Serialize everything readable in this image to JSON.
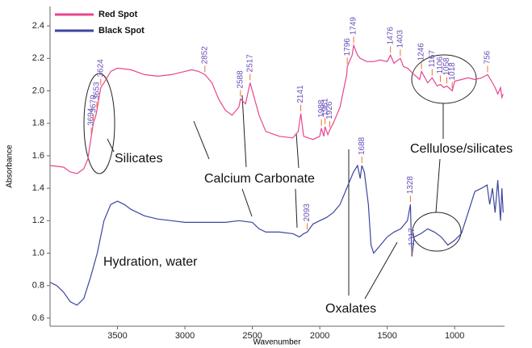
{
  "chart_data": {
    "type": "line",
    "x_label": "Wavenumber",
    "y_label": "Absorbance",
    "xlim": [
      4000,
      630
    ],
    "ylim": [
      0.55,
      2.52
    ],
    "xticks": [
      3500,
      3000,
      2500,
      2000,
      1500,
      1000
    ],
    "yticks": [
      0.6,
      0.8,
      {
        "value": 1,
        "label": "1.0"
      },
      1.2,
      1.4,
      1.6,
      1.8,
      {
        "value": 2,
        "label": "2.0"
      },
      2.2,
      2.4
    ],
    "legend": "top-left",
    "series": [
      {
        "name": "Red Spot",
        "color": "#e8458f",
        "x": [
          4000,
          3900,
          3850,
          3800,
          3750,
          3720,
          3694,
          3679,
          3660,
          3653,
          3624,
          3600,
          3550,
          3500,
          3400,
          3300,
          3200,
          3100,
          3000,
          2950,
          2900,
          2852,
          2800,
          2750,
          2700,
          2650,
          2600,
          2588,
          2550,
          2517,
          2500,
          2450,
          2400,
          2300,
          2200,
          2160,
          2141,
          2120,
          2050,
          2000,
          1988,
          1970,
          1961,
          1940,
          1926,
          1900,
          1850,
          1800,
          1796,
          1760,
          1749,
          1720,
          1700,
          1650,
          1600,
          1550,
          1500,
          1476,
          1450,
          1403,
          1380,
          1350,
          1300,
          1260,
          1246,
          1200,
          1167,
          1130,
          1106,
          1080,
          1058,
          1018,
          1000,
          950,
          900,
          850,
          800,
          756,
          720,
          700,
          680,
          660,
          650,
          640
        ],
        "values": [
          1.54,
          1.53,
          1.5,
          1.49,
          1.52,
          1.58,
          1.72,
          1.8,
          1.85,
          1.88,
          2.02,
          2.05,
          2.12,
          2.14,
          2.13,
          2.1,
          2.09,
          2.1,
          2.12,
          2.13,
          2.12,
          2.1,
          2.05,
          1.95,
          1.88,
          1.85,
          1.9,
          1.95,
          1.92,
          2.05,
          2.0,
          1.85,
          1.75,
          1.72,
          1.71,
          1.75,
          1.86,
          1.72,
          1.7,
          1.72,
          1.77,
          1.72,
          1.78,
          1.73,
          1.76,
          1.8,
          1.9,
          2.1,
          2.15,
          2.22,
          2.28,
          2.22,
          2.2,
          2.18,
          2.18,
          2.19,
          2.18,
          2.22,
          2.17,
          2.2,
          2.15,
          2.14,
          2.1,
          2.07,
          2.12,
          2.05,
          2.08,
          2.03,
          2.04,
          2.02,
          2.03,
          2.0,
          2.06,
          2.07,
          2.08,
          2.07,
          2.08,
          2.1,
          2.05,
          2.02,
          1.98,
          2.02,
          1.96,
          1.98
        ],
        "peaks": [
          3694,
          3679,
          3653,
          3624,
          2852,
          2588,
          2517,
          2141,
          1988,
          1961,
          1926,
          1796,
          1749,
          1476,
          1403,
          1246,
          1167,
          1106,
          1058,
          1018,
          756
        ]
      },
      {
        "name": "Black Spot",
        "color": "#3c46a0",
        "x": [
          4000,
          3950,
          3900,
          3850,
          3800,
          3750,
          3700,
          3650,
          3600,
          3550,
          3500,
          3450,
          3400,
          3300,
          3200,
          3100,
          3000,
          2900,
          2800,
          2700,
          2600,
          2500,
          2450,
          2400,
          2300,
          2200,
          2150,
          2120,
          2093,
          2050,
          2000,
          1950,
          1900,
          1850,
          1800,
          1750,
          1720,
          1700,
          1688,
          1670,
          1640,
          1620,
          1600,
          1550,
          1500,
          1450,
          1400,
          1350,
          1328,
          1320,
          1317,
          1300,
          1250,
          1200,
          1150,
          1100,
          1050,
          1000,
          950,
          900,
          850,
          800,
          760,
          740,
          720,
          700,
          680,
          660,
          650,
          640
        ],
        "values": [
          0.82,
          0.8,
          0.76,
          0.7,
          0.68,
          0.72,
          0.85,
          1.0,
          1.2,
          1.3,
          1.32,
          1.3,
          1.27,
          1.23,
          1.21,
          1.2,
          1.19,
          1.19,
          1.19,
          1.19,
          1.2,
          1.19,
          1.15,
          1.13,
          1.13,
          1.12,
          1.1,
          1.12,
          1.13,
          1.18,
          1.2,
          1.22,
          1.25,
          1.3,
          1.4,
          1.5,
          1.54,
          1.46,
          1.54,
          1.5,
          1.3,
          1.05,
          1.0,
          1.05,
          1.1,
          1.13,
          1.15,
          1.2,
          1.3,
          1.05,
          0.98,
          1.1,
          1.12,
          1.15,
          1.13,
          1.1,
          1.05,
          1.08,
          1.12,
          1.25,
          1.38,
          1.4,
          1.42,
          1.3,
          1.4,
          1.25,
          1.45,
          1.2,
          1.4,
          1.25
        ],
        "peaks": [
          2093,
          1688,
          1328,
          1317
        ]
      }
    ],
    "annotations": [
      "Silicates",
      "Calcium Carbonate",
      "Cellulose/silicates",
      "Hydration, water",
      "Oxalates"
    ]
  }
}
